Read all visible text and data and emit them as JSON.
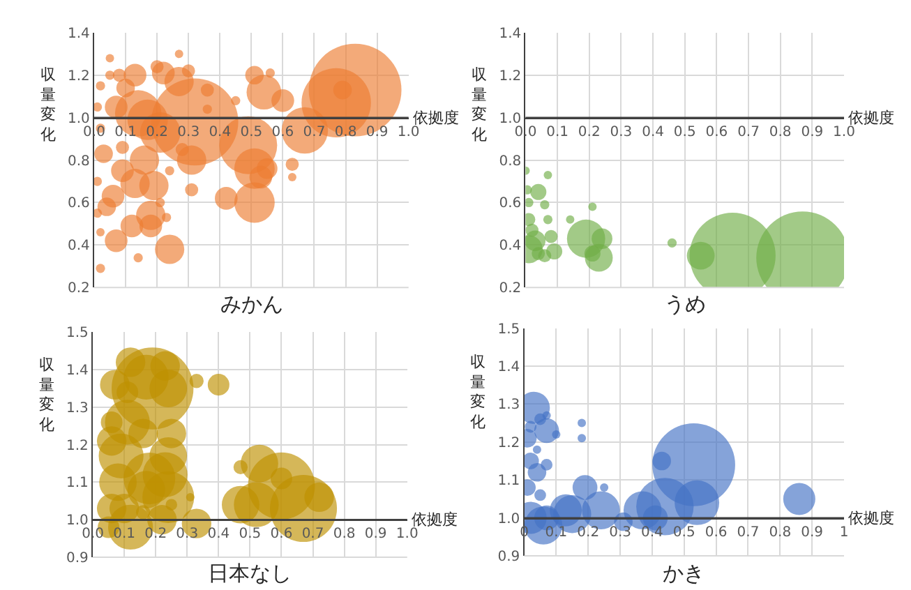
{
  "chart_data": [
    {
      "type": "bubble",
      "title": "みかん",
      "ylabel": "収量変化",
      "grid": true,
      "xlim": [
        0,
        1
      ],
      "xticks": [
        {
          "value": 0,
          "label": "0.0"
        },
        {
          "value": 0.1,
          "label": "0.1"
        },
        {
          "value": 0.2,
          "label": "0.2"
        },
        {
          "value": 0.3,
          "label": "0.3"
        },
        {
          "value": 0.4,
          "label": "0.4"
        },
        {
          "value": 0.5,
          "label": "0.5"
        },
        {
          "value": 0.6,
          "label": "0.6"
        },
        {
          "value": 0.7,
          "label": "0.7"
        },
        {
          "value": 0.8,
          "label": "0.8"
        },
        {
          "value": 0.9,
          "label": "0.9"
        },
        {
          "value": 1,
          "label": "1.0"
        }
      ],
      "ylim": [
        0.2,
        1.4
      ],
      "yticks": [
        {
          "value": 0.2,
          "label": "0.2"
        },
        {
          "value": 0.4,
          "label": "0.4"
        },
        {
          "value": 0.6,
          "label": "0.6"
        },
        {
          "value": 0.8,
          "label": "0.8"
        },
        {
          "value": 1,
          "label": "1.0"
        },
        {
          "value": 1.2,
          "label": "1.2"
        },
        {
          "value": 1.4,
          "label": "1.4"
        }
      ],
      "ref_lines": [
        {
          "axis": "y",
          "value": 1.0,
          "label": "依拠度"
        }
      ],
      "series": [
        {
          "color": "#ed7d31",
          "x": [
            0.83,
            0.77,
            0.32,
            0.49,
            0.51,
            0.51,
            0.67,
            0.54,
            0.6,
            0.51,
            0.55,
            0.53,
            0.42,
            0.45,
            0.63,
            0.63,
            0.56,
            0.79,
            0.24,
            0.21,
            0.17,
            0.13,
            0.14,
            0.27,
            0.2,
            0.22,
            0.3,
            0.36,
            0.31,
            0.19,
            0.13,
            0.18,
            0.18,
            0.12,
            0.07,
            0.16,
            0.09,
            0.06,
            0.04,
            0.03,
            0.09,
            0.07,
            0.1,
            0.08,
            0.05,
            0.02,
            0.01,
            0.02,
            0.01,
            0.02,
            0.02,
            0.14,
            0.23,
            0.21,
            0.24,
            0.28,
            0.36,
            0.31,
            0.01,
            0.27,
            0.05
          ],
          "values": [
            1.13,
            1.07,
            0.98,
            0.87,
            0.76,
            0.6,
            0.94,
            1.12,
            1.08,
            1.2,
            0.76,
            0.72,
            0.62,
            1.08,
            0.78,
            0.72,
            1.21,
            1.13,
            0.38,
            0.93,
            0.99,
            1.2,
            1.02,
            1.17,
            1.24,
            1.21,
            1.22,
            1.13,
            0.8,
            0.68,
            0.69,
            0.54,
            0.49,
            0.49,
            0.42,
            0.8,
            0.75,
            0.63,
            0.58,
            0.83,
            0.86,
            1.05,
            1.14,
            1.2,
            1.2,
            1.15,
            1.05,
            0.95,
            0.7,
            0.46,
            0.29,
            0.34,
            0.53,
            0.6,
            0.75,
            0.85,
            1.04,
            0.66,
            0.55,
            1.3,
            1.28
          ],
          "sizes": [
            1,
            0.56,
            0.88,
            0.39,
            0.19,
            0.19,
            0.25,
            0.14,
            0.06,
            0.04,
            0.05,
            0.06,
            0.06,
            0.01,
            0.02,
            0.005,
            0.01,
            0.04,
            0.1,
            0.19,
            0.19,
            0.06,
            0.25,
            0.1,
            0.02,
            0.06,
            0.02,
            0.02,
            0.1,
            0.1,
            0.1,
            0.1,
            0.06,
            0.06,
            0.06,
            0.1,
            0.06,
            0.06,
            0.04,
            0.04,
            0.02,
            0.06,
            0.04,
            0.02,
            0.01,
            0.01,
            0.01,
            0.01,
            0.01,
            0.005,
            0.01,
            0.01,
            0.01,
            0.01,
            0.01,
            0.02,
            0.01,
            0.02,
            0.01,
            0.005,
            0.005
          ]
        }
      ]
    },
    {
      "type": "bubble",
      "title": "うめ",
      "ylabel": "収量変化",
      "grid": true,
      "xlim": [
        0,
        1
      ],
      "xticks": [
        {
          "value": 0,
          "label": "0.0"
        },
        {
          "value": 0.1,
          "label": "0.1"
        },
        {
          "value": 0.2,
          "label": "0.2"
        },
        {
          "value": 0.3,
          "label": "0.3"
        },
        {
          "value": 0.4,
          "label": "0.4"
        },
        {
          "value": 0.5,
          "label": "0.5"
        },
        {
          "value": 0.6,
          "label": "0.6"
        },
        {
          "value": 0.7,
          "label": "0.7"
        },
        {
          "value": 0.8,
          "label": "0.8"
        },
        {
          "value": 0.9,
          "label": "0.9"
        },
        {
          "value": 1,
          "label": "1.0"
        }
      ],
      "ylim": [
        0.2,
        1.4
      ],
      "yticks": [
        {
          "value": 0.2,
          "label": "0.2"
        },
        {
          "value": 0.4,
          "label": "0.4"
        },
        {
          "value": 0.6,
          "label": "0.6"
        },
        {
          "value": 0.8,
          "label": "0.8"
        },
        {
          "value": 1,
          "label": "1.0"
        },
        {
          "value": 1.2,
          "label": "1.2"
        },
        {
          "value": 1.4,
          "label": "1.4"
        }
      ],
      "ref_lines": [
        {
          "axis": "y",
          "value": 1.0,
          "label": "依拠度"
        }
      ],
      "series": [
        {
          "color": "#70ad47",
          "x": [
            0.87,
            0.65,
            0.55,
            0.46,
            0.19,
            0.23,
            0.24,
            0.21,
            0.21,
            0.14,
            0.04,
            0.06,
            0.07,
            0.08,
            0.09,
            0.06,
            0.03,
            0.01,
            0.01,
            0.01,
            0.005,
            0.02,
            0.07,
            0.0,
            0.04
          ],
          "values": [
            0.34,
            0.35,
            0.35,
            0.41,
            0.43,
            0.34,
            0.43,
            0.36,
            0.58,
            0.52,
            0.65,
            0.59,
            0.52,
            0.44,
            0.37,
            0.35,
            0.42,
            0.38,
            0.52,
            0.6,
            0.66,
            0.47,
            0.73,
            0.75,
            0.36
          ],
          "sizes": [
            1,
            0.86,
            0.09,
            0.01,
            0.17,
            0.09,
            0.05,
            0.03,
            0.005,
            0.005,
            0.03,
            0.01,
            0.01,
            0.02,
            0.03,
            0.02,
            0.05,
            0.09,
            0.02,
            0.01,
            0.01,
            0.02,
            0.005,
            0.005,
            0.02
          ]
        }
      ]
    },
    {
      "type": "bubble",
      "title": "日本なし",
      "ylabel": "収量変化",
      "grid": true,
      "xlim": [
        0,
        1
      ],
      "xticks": [
        {
          "value": 0,
          "label": "0.0"
        },
        {
          "value": 0.1,
          "label": "0.1"
        },
        {
          "value": 0.2,
          "label": "0.2"
        },
        {
          "value": 0.3,
          "label": "0.3"
        },
        {
          "value": 0.4,
          "label": "0.4"
        },
        {
          "value": 0.5,
          "label": "0.5"
        },
        {
          "value": 0.6,
          "label": "0.6"
        },
        {
          "value": 0.7,
          "label": "0.7"
        },
        {
          "value": 0.8,
          "label": "0.8"
        },
        {
          "value": 0.9,
          "label": "0.9"
        },
        {
          "value": 1,
          "label": "1.0"
        }
      ],
      "ylim": [
        0.9,
        1.5
      ],
      "yticks": [
        {
          "value": 0.9,
          "label": "0.9"
        },
        {
          "value": 1,
          "label": "1.0"
        },
        {
          "value": 1.1,
          "label": "1.1"
        },
        {
          "value": 1.2,
          "label": "1.2"
        },
        {
          "value": 1.3,
          "label": "1.3"
        },
        {
          "value": 1.4,
          "label": "1.4"
        },
        {
          "value": 1.5,
          "label": "1.5"
        }
      ],
      "ref_lines": [
        {
          "axis": "y",
          "value": 1.0,
          "label": "依拠度"
        }
      ],
      "series": [
        {
          "color": "#bf9000",
          "x": [
            0.67,
            0.6,
            0.52,
            0.47,
            0.53,
            0.72,
            0.6,
            0.47,
            0.4,
            0.33,
            0.33,
            0.19,
            0.17,
            0.23,
            0.24,
            0.12,
            0.07,
            0.11,
            0.06,
            0.11,
            0.16,
            0.25,
            0.24,
            0.09,
            0.06,
            0.18,
            0.23,
            0.24,
            0.17,
            0.08,
            0.06,
            0.1,
            0.12,
            0.05,
            0.22,
            0.31,
            0.25,
            0.16
          ],
          "values": [
            1.03,
            1.09,
            1.04,
            1.04,
            1.15,
            1.06,
            1.11,
            1.14,
            1.36,
            1.37,
            0.99,
            1.35,
            1.38,
            1.41,
            1.35,
            1.42,
            1.36,
            1.34,
            1.26,
            1.26,
            1.23,
            1.23,
            1.17,
            1.17,
            1.21,
            1.11,
            1.12,
            1.06,
            1.08,
            1.1,
            1.03,
            1.03,
            0.98,
            0.98,
            1.0,
            1.06,
            1.04,
            1.02
          ],
          "sizes": [
            0.67,
            0.67,
            0.3,
            0.21,
            0.21,
            0.13,
            0.07,
            0.03,
            0.07,
            0.03,
            0.13,
            1,
            0.3,
            0.13,
            0.21,
            0.13,
            0.13,
            0.07,
            0.07,
            0.3,
            0.13,
            0.13,
            0.21,
            0.3,
            0.13,
            0.4,
            0.3,
            0.4,
            0.21,
            0.21,
            0.13,
            0.13,
            0.3,
            0.07,
            0.13,
            0.01,
            0.02,
            0.03
          ]
        }
      ]
    },
    {
      "type": "bubble",
      "title": "かき",
      "ylabel": "収量変化",
      "grid": true,
      "xlim": [
        0,
        1
      ],
      "xticks": [
        0,
        0.1,
        0.2,
        0.3,
        0.4,
        0.5,
        0.6,
        0.7,
        0.8,
        0.9,
        1
      ],
      "ylim": [
        0.9,
        1.5
      ],
      "yticks": [
        {
          "value": 0.9,
          "label": "0.9"
        },
        {
          "value": 1,
          "label": "1.0"
        },
        {
          "value": 1.1,
          "label": "1.1"
        },
        {
          "value": 1.2,
          "label": "1.2"
        },
        {
          "value": 1.3,
          "label": "1.3"
        },
        {
          "value": 1.4,
          "label": "1.4"
        },
        {
          "value": 1.5,
          "label": "1.5"
        }
      ],
      "ref_lines": [
        {
          "axis": "y",
          "value": 1.0,
          "label": "依拠度"
        }
      ],
      "series": [
        {
          "color": "#4472c4",
          "x": [
            0.53,
            0.44,
            0.54,
            0.37,
            0.41,
            0.43,
            0.86,
            0.24,
            0.31,
            0.19,
            0.25,
            0.18,
            0.18,
            0.15,
            0.13,
            0.06,
            0.07,
            0.02,
            0.03,
            0.07,
            0.1,
            0.07,
            0.05,
            0.01,
            0.02,
            0.04,
            0.07,
            0.01,
            0.05,
            0.02,
            0.04
          ],
          "values": [
            1.14,
            1.03,
            1.04,
            1.02,
            1.0,
            1.15,
            1.05,
            1.02,
            0.99,
            1.08,
            1.08,
            1.25,
            1.21,
            1.01,
            1.02,
            0.98,
            1.0,
            1.0,
            1.29,
            1.23,
            1.22,
            1.27,
            1.26,
            1.21,
            1.15,
            1.12,
            1.14,
            1.08,
            1.06,
            1.24,
            1.18
          ],
          "sizes": [
            1,
            0.48,
            0.29,
            0.21,
            0.09,
            0.05,
            0.15,
            0.21,
            0.05,
            0.09,
            0.01,
            0.01,
            0.005,
            0.21,
            0.15,
            0.21,
            0.09,
            0.15,
            0.15,
            0.09,
            0.01,
            0.01,
            0.02,
            0.05,
            0.04,
            0.05,
            0.02,
            0.04,
            0.02,
            0.02,
            0.01
          ]
        }
      ]
    }
  ]
}
